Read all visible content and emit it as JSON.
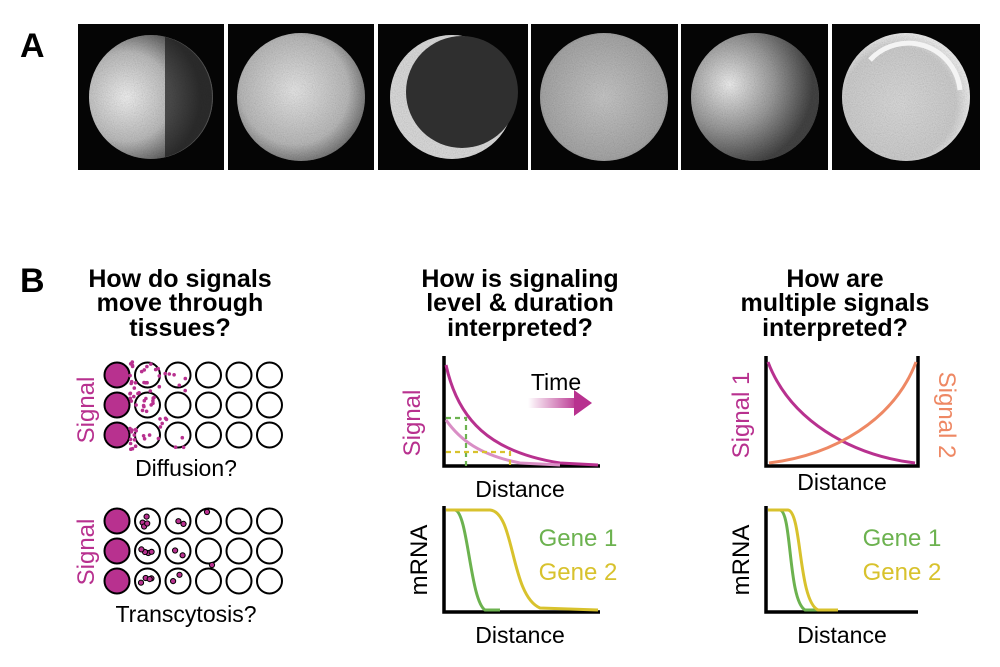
{
  "panel_a": {
    "letter": "A",
    "image_count": 6
  },
  "panel_b": {
    "letter": "B",
    "col1": {
      "question": [
        "How do signals",
        "move through",
        "tissues?"
      ],
      "signal_label": "Signal",
      "diffusion_label": "Diffusion?",
      "transcytosis_label": "Transcytosis?"
    },
    "col2": {
      "question": [
        "How is signaling",
        "level & duration",
        "interpreted?"
      ],
      "time_label": "Time",
      "signal_ylabel": "Signal",
      "distance_label": "Distance",
      "mrna_ylabel": "mRNA",
      "gene1": "Gene 1",
      "gene2": "Gene 2"
    },
    "col3": {
      "question": [
        "How are",
        "multiple signals",
        "interpreted?"
      ],
      "signal1_label": "Signal 1",
      "signal2_label": "Signal 2",
      "distance_label": "Distance",
      "mrna_ylabel": "mRNA",
      "gene1": "Gene 1",
      "gene2": "Gene 2"
    }
  },
  "colors": {
    "signal": "#b8318f",
    "signal_light": "#d98ec5",
    "signal2": "#ee8864",
    "gene1": "#6cb24f",
    "gene2": "#d8c22d"
  }
}
